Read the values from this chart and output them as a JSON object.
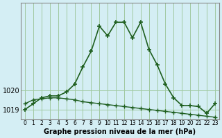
{
  "title": "Graphe pression niveau de la mer (hPa)",
  "background_color": "#d4eef4",
  "plot_bg_color": "#d4eef4",
  "line_color": "#1e5e1e",
  "grid_color": "#a0c8a0",
  "x_values": [
    0,
    1,
    2,
    3,
    4,
    5,
    6,
    7,
    8,
    9,
    10,
    11,
    12,
    13,
    14,
    15,
    16,
    17,
    18,
    19,
    20,
    21,
    22,
    23
  ],
  "y_values": [
    1019.0,
    1019.3,
    1019.6,
    1019.7,
    1019.7,
    1019.9,
    1020.3,
    1021.2,
    1022.0,
    1023.3,
    1022.8,
    1023.5,
    1023.5,
    1022.7,
    1023.5,
    1022.1,
    1021.3,
    1020.3,
    1019.6,
    1019.2,
    1019.2,
    1019.15,
    1018.8,
    1019.3
  ],
  "y2_values": [
    1019.3,
    1019.5,
    1019.55,
    1019.6,
    1019.6,
    1019.55,
    1019.5,
    1019.4,
    1019.35,
    1019.3,
    1019.25,
    1019.2,
    1019.15,
    1019.1,
    1019.05,
    1019.0,
    1018.95,
    1018.9,
    1018.85,
    1018.8,
    1018.75,
    1018.7,
    1018.65,
    1018.6
  ],
  "ylim": [
    1018.5,
    1024.5
  ],
  "yticks": [
    1019,
    1020
  ],
  "xlim": [
    -0.5,
    23.5
  ],
  "xlabel": "",
  "ylabel": ""
}
